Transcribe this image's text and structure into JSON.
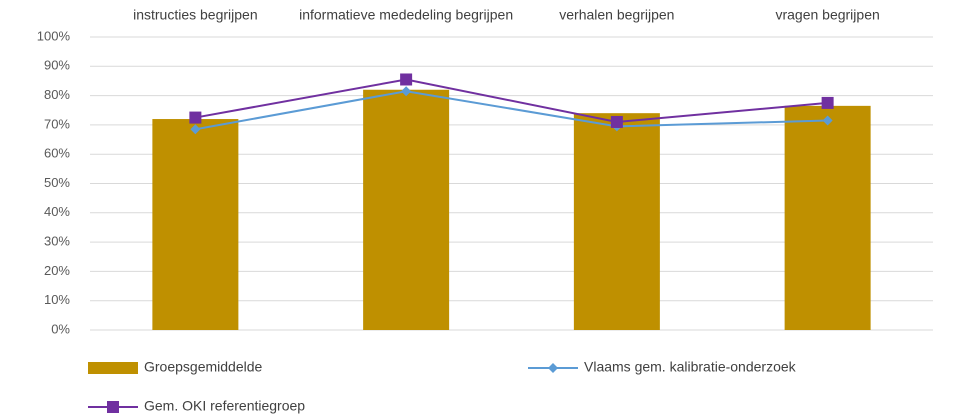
{
  "chart_data": {
    "type": "bar",
    "categories": [
      "instructies begrijpen",
      "informatieve mededeling begrijpen",
      "verhalen begrijpen",
      "vragen begrijpen"
    ],
    "ylim": [
      0,
      100
    ],
    "yticks": [
      {
        "value": 0,
        "label": "0%"
      },
      {
        "value": 10,
        "label": "10%"
      },
      {
        "value": 20,
        "label": "20%"
      },
      {
        "value": 30,
        "label": "30%"
      },
      {
        "value": 40,
        "label": "40%"
      },
      {
        "value": 50,
        "label": "50%"
      },
      {
        "value": 60,
        "label": "60%"
      },
      {
        "value": 70,
        "label": "70%"
      },
      {
        "value": 80,
        "label": "80%"
      },
      {
        "value": 90,
        "label": "90%"
      },
      {
        "value": 100,
        "label": "100%"
      }
    ],
    "grid": true,
    "series": [
      {
        "name": "Groepsgemiddelde",
        "type": "bar",
        "color": "#bf9000",
        "values": [
          72,
          82,
          74,
          76.5
        ]
      },
      {
        "name": "Vlaams gem. kalibratie-onderzoek",
        "type": "line",
        "marker": "diamond",
        "color": "#5b9bd5",
        "values": [
          68.5,
          81.5,
          69.5,
          71.5
        ]
      },
      {
        "name": "Gem. OKI referentiegroep",
        "type": "line",
        "marker": "square",
        "color": "#7030a0",
        "values": [
          72.5,
          85.5,
          71,
          77.5
        ]
      }
    ]
  }
}
